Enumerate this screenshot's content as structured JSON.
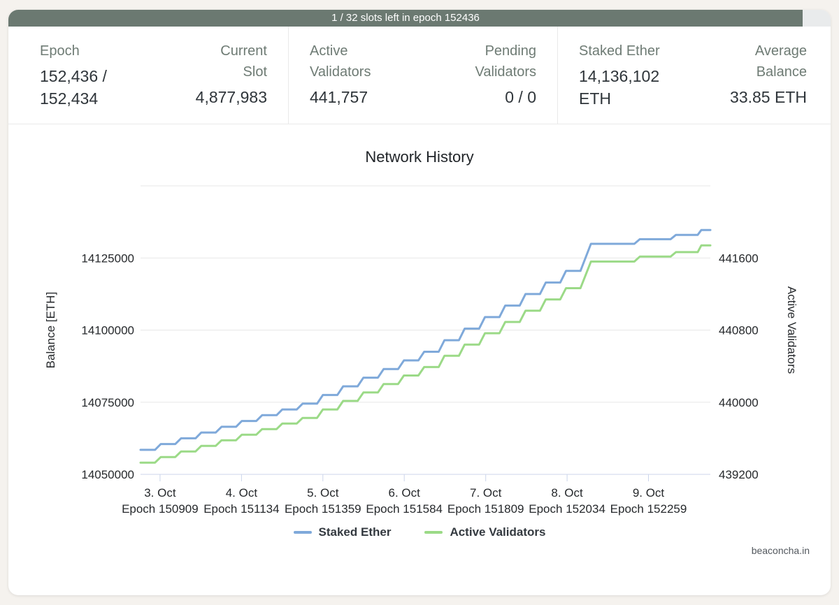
{
  "banner": {
    "text": "1 / 32 slots left in epoch 152436"
  },
  "colors": {
    "banner_bg": "#6b7971",
    "staked_ether_line": "#7fa9da",
    "active_validators_line": "#9bda87",
    "gridline": "#e7e7e7",
    "axis_line": "#ccd6eb"
  },
  "stats": {
    "groups": [
      {
        "left": {
          "label": "Epoch",
          "value": "152,436 / 152,434"
        },
        "right": {
          "label": "Current Slot",
          "value": "4,877,983"
        }
      },
      {
        "left": {
          "label": "Active Validators",
          "value": "441,757"
        },
        "right": {
          "label": "Pending Validators",
          "value": "0 / 0"
        }
      },
      {
        "left": {
          "label": "Staked Ether",
          "value": "14,136,102 ETH"
        },
        "right": {
          "label": "Average Balance",
          "value": "33.85 ETH"
        }
      }
    ]
  },
  "chart_data": {
    "type": "line",
    "title": "Network History",
    "watermark": "beaconcha.in",
    "x_axis": {
      "epoch_range": [
        150855,
        152430
      ],
      "ticks": [
        {
          "date": "3. Oct",
          "epoch": 150909,
          "epoch_label": "Epoch 150909"
        },
        {
          "date": "4. Oct",
          "epoch": 151134,
          "epoch_label": "Epoch 151134"
        },
        {
          "date": "5. Oct",
          "epoch": 151359,
          "epoch_label": "Epoch 151359"
        },
        {
          "date": "6. Oct",
          "epoch": 151584,
          "epoch_label": "Epoch 151584"
        },
        {
          "date": "7. Oct",
          "epoch": 151809,
          "epoch_label": "Epoch 151809"
        },
        {
          "date": "8. Oct",
          "epoch": 152034,
          "epoch_label": "Epoch 152034"
        },
        {
          "date": "9. Oct",
          "epoch": 152259,
          "epoch_label": "Epoch 152259"
        }
      ]
    },
    "y_left": {
      "title": "Balance [ETH]",
      "range": [
        14050000,
        14150000
      ],
      "ticks": [
        14050000,
        14075000,
        14100000,
        14125000
      ]
    },
    "y_right": {
      "title": "Active Validators",
      "range": [
        439200,
        442400
      ],
      "ticks": [
        439200,
        440000,
        440800,
        441600
      ]
    },
    "series": [
      {
        "name": "Staked Ether",
        "color": "#7fa9da",
        "axis": "left",
        "points": [
          [
            150855,
            14058500
          ],
          [
            150895,
            14058500
          ],
          [
            150911,
            14060500
          ],
          [
            150951,
            14060500
          ],
          [
            150967,
            14062500
          ],
          [
            151007,
            14062500
          ],
          [
            151023,
            14064500
          ],
          [
            151063,
            14064500
          ],
          [
            151079,
            14066500
          ],
          [
            151119,
            14066500
          ],
          [
            151135,
            14068500
          ],
          [
            151175,
            14068500
          ],
          [
            151191,
            14070500
          ],
          [
            151231,
            14070500
          ],
          [
            151247,
            14072500
          ],
          [
            151287,
            14072500
          ],
          [
            151303,
            14074500
          ],
          [
            151343,
            14074500
          ],
          [
            151359,
            14077500
          ],
          [
            151399,
            14077500
          ],
          [
            151415,
            14080500
          ],
          [
            151455,
            14080500
          ],
          [
            151471,
            14083500
          ],
          [
            151511,
            14083500
          ],
          [
            151527,
            14086500
          ],
          [
            151567,
            14086500
          ],
          [
            151583,
            14089500
          ],
          [
            151623,
            14089500
          ],
          [
            151639,
            14092500
          ],
          [
            151679,
            14092500
          ],
          [
            151695,
            14096500
          ],
          [
            151735,
            14096500
          ],
          [
            151751,
            14100500
          ],
          [
            151791,
            14100500
          ],
          [
            151807,
            14104500
          ],
          [
            151847,
            14104500
          ],
          [
            151863,
            14108500
          ],
          [
            151903,
            14108500
          ],
          [
            151919,
            14112500
          ],
          [
            151959,
            14112500
          ],
          [
            151975,
            14116500
          ],
          [
            152015,
            14116500
          ],
          [
            152031,
            14120500
          ],
          [
            152071,
            14120500
          ],
          [
            152100,
            14129900
          ],
          [
            152220,
            14129900
          ],
          [
            152235,
            14131500
          ],
          [
            152320,
            14131500
          ],
          [
            152335,
            14133000
          ],
          [
            152395,
            14133000
          ],
          [
            152405,
            14134700
          ],
          [
            152430,
            14134700
          ]
        ]
      },
      {
        "name": "Active Validators",
        "color": "#9bda87",
        "axis": "right",
        "points": [
          [
            150855,
            439330
          ],
          [
            150895,
            439330
          ],
          [
            150911,
            439392
          ],
          [
            150951,
            439392
          ],
          [
            150967,
            439454
          ],
          [
            151007,
            439454
          ],
          [
            151023,
            439516
          ],
          [
            151063,
            439516
          ],
          [
            151079,
            439578
          ],
          [
            151119,
            439578
          ],
          [
            151135,
            439640
          ],
          [
            151175,
            439640
          ],
          [
            151191,
            439702
          ],
          [
            151231,
            439702
          ],
          [
            151247,
            439764
          ],
          [
            151287,
            439764
          ],
          [
            151303,
            439826
          ],
          [
            151343,
            439826
          ],
          [
            151359,
            439920
          ],
          [
            151399,
            439920
          ],
          [
            151415,
            440014
          ],
          [
            151455,
            440014
          ],
          [
            151471,
            440108
          ],
          [
            151511,
            440108
          ],
          [
            151527,
            440202
          ],
          [
            151567,
            440202
          ],
          [
            151583,
            440296
          ],
          [
            151623,
            440296
          ],
          [
            151639,
            440390
          ],
          [
            151679,
            440390
          ],
          [
            151695,
            440515
          ],
          [
            151735,
            440515
          ],
          [
            151751,
            440640
          ],
          [
            151791,
            440640
          ],
          [
            151807,
            440765
          ],
          [
            151847,
            440765
          ],
          [
            151863,
            440890
          ],
          [
            151903,
            440890
          ],
          [
            151919,
            441015
          ],
          [
            151959,
            441015
          ],
          [
            151975,
            441140
          ],
          [
            152015,
            441140
          ],
          [
            152031,
            441265
          ],
          [
            152071,
            441265
          ],
          [
            152100,
            441560
          ],
          [
            152220,
            441560
          ],
          [
            152235,
            441615
          ],
          [
            152320,
            441615
          ],
          [
            152335,
            441665
          ],
          [
            152395,
            441665
          ],
          [
            152405,
            441740
          ],
          [
            152430,
            441740
          ]
        ]
      }
    ]
  }
}
